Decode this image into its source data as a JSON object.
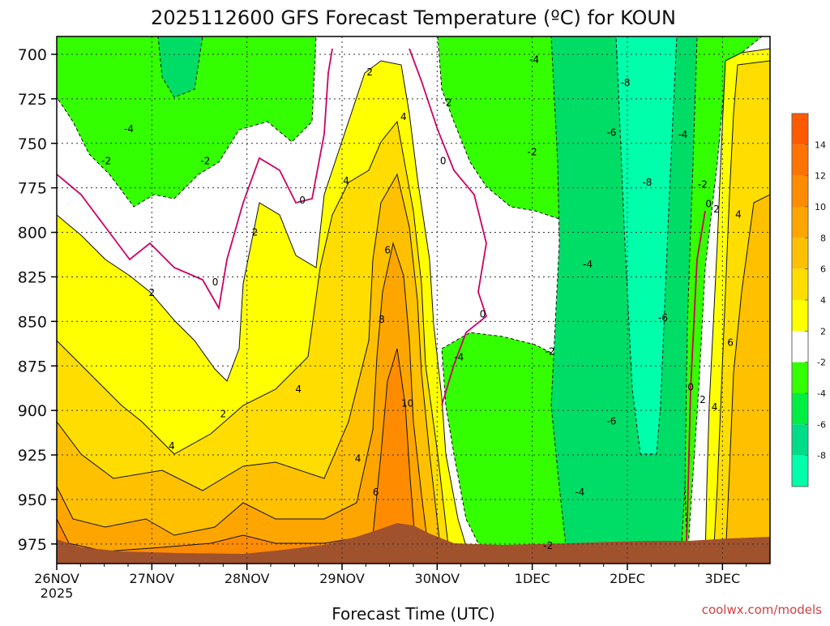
{
  "chart_data": {
    "type": "heatmap",
    "title": "2025112600 GFS Forecast Temperature (ºC) for KOUN",
    "xlabel": "Forecast Time (UTC)",
    "ylabel": "",
    "credit": "coolwx.com/models",
    "x_ticks": [
      {
        "label": "26NOV",
        "sublabel": "2025",
        "hours": 0
      },
      {
        "label": "27NOV",
        "hours": 24
      },
      {
        "label": "28NOV",
        "hours": 48
      },
      {
        "label": "29NOV",
        "hours": 72
      },
      {
        "label": "30NOV",
        "hours": 96
      },
      {
        "label": "1DEC",
        "hours": 120
      },
      {
        "label": "2DEC",
        "hours": 144
      },
      {
        "label": "3DEC",
        "hours": 168
      }
    ],
    "xlim_hours": [
      0,
      180
    ],
    "y_ticks": [
      700,
      725,
      750,
      775,
      800,
      825,
      850,
      875,
      900,
      925,
      950,
      975
    ],
    "ylim": [
      690,
      986
    ],
    "grid": true,
    "colorbar": {
      "levels": [
        "14",
        "12",
        "10",
        "8",
        "6",
        "4",
        "2",
        "-2",
        "-4",
        "-6",
        "-8"
      ],
      "colors": [
        "#ff5a00",
        "#ff7300",
        "#ff8c00",
        "#ffa500",
        "#ffc000",
        "#ffdd00",
        "#ffff00",
        "#ffffff",
        "#33ff00",
        "#00ee44",
        "#00dd88",
        "#00ffaa"
      ]
    },
    "colors": {
      "cold": "#00ffaa",
      "cool": "#00dd66",
      "mild_cold": "#33ff00",
      "neutral": "#ffffff",
      "warm": "#ffff00",
      "warmer": "#ffdd00",
      "hot": "#ffc000",
      "hotter": "#ffa500",
      "hottest": "#ff8c00",
      "terrain": "#a0522d",
      "zero_line": "#cc0066"
    },
    "contour_labels": [
      {
        "text": "-4",
        "hours": 18.2,
        "p": 742
      },
      {
        "text": "-2",
        "hours": 12.5,
        "p": 760
      },
      {
        "text": "-2",
        "hours": 37.5,
        "p": 760
      },
      {
        "text": "0",
        "hours": 40,
        "p": 828
      },
      {
        "text": "0",
        "hours": 62,
        "p": 782
      },
      {
        "text": "2",
        "hours": 24,
        "p": 834
      },
      {
        "text": "2",
        "hours": 50,
        "p": 800
      },
      {
        "text": "2",
        "hours": 42,
        "p": 902
      },
      {
        "text": "4",
        "hours": 29,
        "p": 920
      },
      {
        "text": "4",
        "hours": 61,
        "p": 888
      },
      {
        "text": "4",
        "hours": 73,
        "p": 771
      },
      {
        "text": "2",
        "hours": 79,
        "p": 710
      },
      {
        "text": "4",
        "hours": 87.5,
        "p": 735
      },
      {
        "text": "6",
        "hours": 83.5,
        "p": 810
      },
      {
        "text": "8",
        "hours": 82,
        "p": 849
      },
      {
        "text": "10",
        "hours": 88.5,
        "p": 896
      },
      {
        "text": "4",
        "hours": 76,
        "p": 927
      },
      {
        "text": "6",
        "hours": 80.5,
        "p": 946
      },
      {
        "text": "-2",
        "hours": 98.5,
        "p": 727
      },
      {
        "text": "0",
        "hours": 97.5,
        "p": 760
      },
      {
        "text": "0",
        "hours": 107.5,
        "p": 846
      },
      {
        "text": "-4",
        "hours": 101.5,
        "p": 870
      },
      {
        "text": "-4",
        "hours": 120.5,
        "p": 703
      },
      {
        "text": "-2",
        "hours": 120,
        "p": 755
      },
      {
        "text": "-2",
        "hours": 124.5,
        "p": 867
      },
      {
        "text": "-4",
        "hours": 134,
        "p": 818
      },
      {
        "text": "-6",
        "hours": 140,
        "p": 744
      },
      {
        "text": "-8",
        "hours": 143.5,
        "p": 716
      },
      {
        "text": "-8",
        "hours": 149,
        "p": 772
      },
      {
        "text": "-6",
        "hours": 153,
        "p": 848
      },
      {
        "text": "-6",
        "hours": 140,
        "p": 906
      },
      {
        "text": "-4",
        "hours": 132,
        "p": 946
      },
      {
        "text": "-2",
        "hours": 124,
        "p": 976
      },
      {
        "text": "-4",
        "hours": 158,
        "p": 745
      },
      {
        "text": "-2",
        "hours": 163,
        "p": 773
      },
      {
        "text": "0",
        "hours": 164.5,
        "p": 784
      },
      {
        "text": "2",
        "hours": 166.5,
        "p": 787
      },
      {
        "text": "4",
        "hours": 172,
        "p": 790
      },
      {
        "text": "6",
        "hours": 170,
        "p": 862
      },
      {
        "text": "0",
        "hours": 160,
        "p": 887
      },
      {
        "text": "2",
        "hours": 163,
        "p": 894
      },
      {
        "text": "4",
        "hours": 166,
        "p": 898
      }
    ]
  }
}
